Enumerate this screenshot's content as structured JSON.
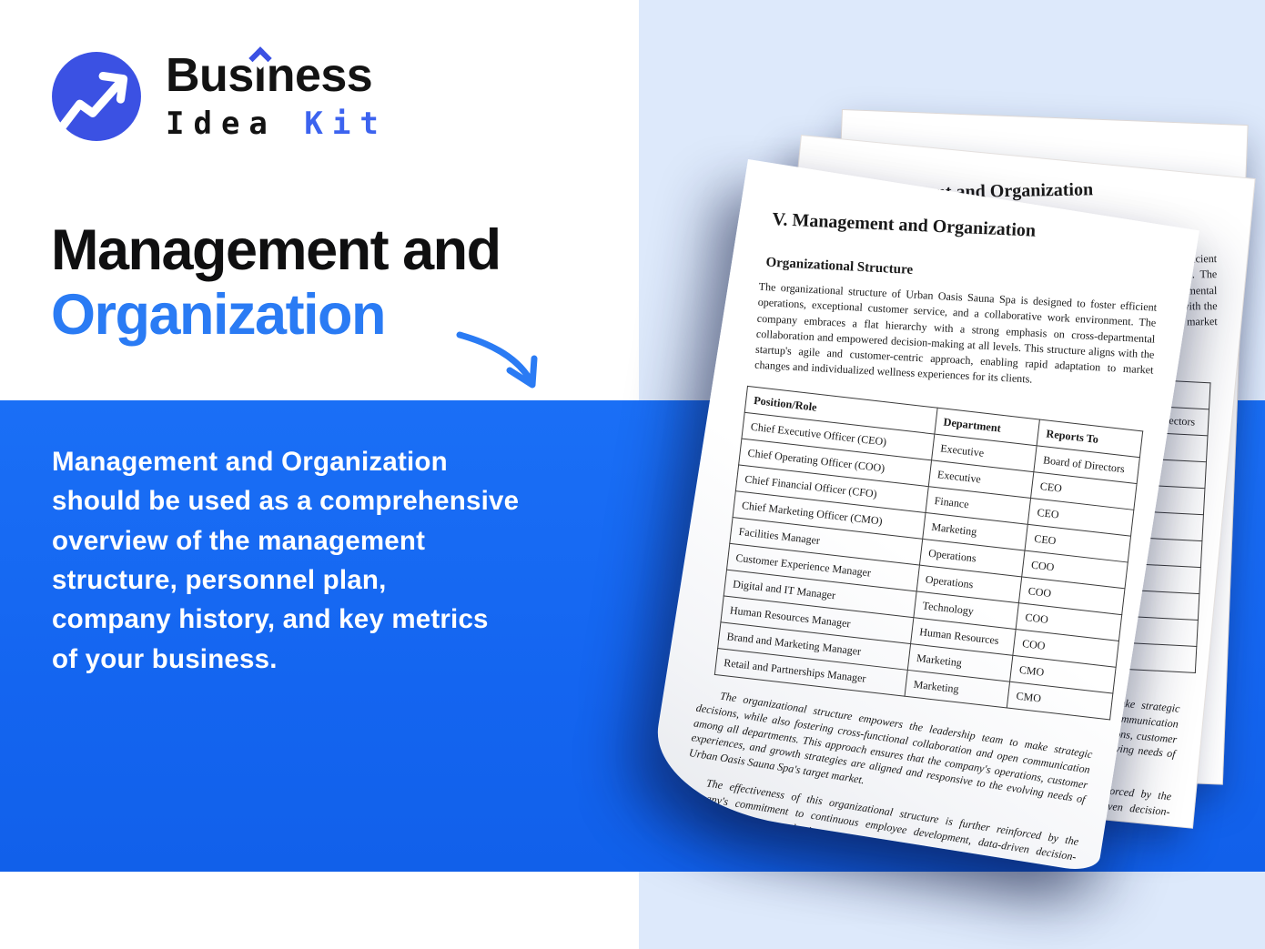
{
  "logo": {
    "word1_prefix": "Bus",
    "word1_i": "i",
    "word1_suffix": "ness",
    "word2": "Idea",
    "word3": "Kit"
  },
  "hero": {
    "title_line1": "Management and",
    "title_line2": "Organization"
  },
  "panel": {
    "lines": [
      "Management and Organization",
      "should be used as a comprehensive",
      "overview of the management",
      "structure, personnel plan,",
      "company history, and key metrics",
      "of your business."
    ]
  },
  "document": {
    "title": "V. Management and Organization",
    "section_heading": "Organizational Structure",
    "intro": "The organizational structure of Urban Oasis Sauna Spa is designed to foster efficient operations, exceptional customer service, and a collaborative work environment. The company embraces a flat hierarchy with a strong emphasis on cross-departmental collaboration and empowered decision-making at all levels. This structure aligns with the startup's agile and customer-centric approach, enabling rapid adaptation to market changes and individualized wellness experiences for its clients.",
    "table": {
      "headers": [
        "Position/Role",
        "Department",
        "Reports To"
      ],
      "rows": [
        [
          "Chief Executive Officer (CEO)",
          "Executive",
          "Board of Directors"
        ],
        [
          "Chief Operating Officer (COO)",
          "Executive",
          "CEO"
        ],
        [
          "Chief Financial Officer (CFO)",
          "Finance",
          "CEO"
        ],
        [
          "Chief Marketing Officer (CMO)",
          "Marketing",
          "CEO"
        ],
        [
          "Facilities Manager",
          "Operations",
          "COO"
        ],
        [
          "Customer Experience Manager",
          "Operations",
          "COO"
        ],
        [
          "Digital and IT Manager",
          "Technology",
          "COO"
        ],
        [
          "Human Resources Manager",
          "Human Resources",
          "COO"
        ],
        [
          "Brand and Marketing Manager",
          "Marketing",
          "CMO"
        ],
        [
          "Retail and Partnerships Manager",
          "Marketing",
          "CMO"
        ]
      ]
    },
    "closing_paragraphs": [
      "The organizational structure empowers the leadership team to make strategic decisions, while also fostering cross-functional collaboration and open communication among all departments. This approach ensures that the company's operations, customer experiences, and growth strategies are aligned and responsive to the evolving needs of Urban Oasis Sauna Spa's target market.",
      "The effectiveness of this organizational structure is further reinforced by the company's commitment to continuous employee development, data-driven decision-making, and a strong emphasis on"
    ]
  },
  "icons": {
    "logo_mark": "trend-arrow-icon",
    "heading_arrow": "curved-arrow-icon",
    "accent": "circumflex-accent"
  },
  "colors": {
    "brand_blue": "#2a7bf4",
    "panel_blue": "#1465f0",
    "logo_circle_blue": "#3b51e3",
    "kit_blue": "#3c63ef",
    "light_blue_bg": "#dde9fb",
    "heading_black": "#0f0f10"
  }
}
